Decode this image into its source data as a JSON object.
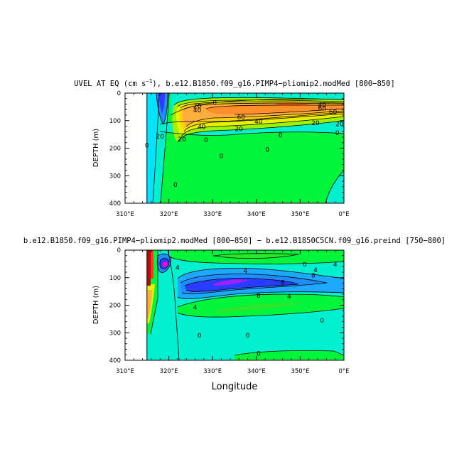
{
  "chart_data": [
    {
      "type": "heatmap",
      "title_main": "UVEL AT EQ (cm s",
      "title_sup": "−1",
      "title_rest": "), b.e12.B1850.f09_g16.PIMP4−pliomip2.modMed [800−850]",
      "ylabel": "DEPTH (m)",
      "xlabel": "",
      "x_ticks": [
        "310°E",
        "320°E",
        "330°E",
        "340°E",
        "350°E",
        "0°E"
      ],
      "y_ticks": [
        "0",
        "100",
        "200",
        "300",
        "400"
      ],
      "xlim": [
        310,
        360
      ],
      "ylim": [
        0,
        400
      ],
      "land_edge_lon": 315,
      "contour_labels": [
        {
          "text": "20",
          "lon": 326.5,
          "depth": 48
        },
        {
          "text": "40",
          "lon": 326.5,
          "depth": 62
        },
        {
          "text": "60",
          "lon": 336.5,
          "depth": 88
        },
        {
          "text": "40",
          "lon": 340.5,
          "depth": 103
        },
        {
          "text": "20",
          "lon": 336.0,
          "depth": 130
        },
        {
          "text": "40",
          "lon": 327.5,
          "depth": 122
        },
        {
          "text": "20",
          "lon": 323.0,
          "depth": 168
        },
        {
          "text": "40",
          "lon": 355.0,
          "depth": 44
        },
        {
          "text": "60",
          "lon": 355.0,
          "depth": 56
        },
        {
          "text": "60",
          "lon": 357.5,
          "depth": 68
        },
        {
          "text": "20",
          "lon": 353.5,
          "depth": 108
        },
        {
          "text": "20",
          "lon": 359.0,
          "depth": 112
        },
        {
          "text": "0",
          "lon": 345.5,
          "depth": 152
        },
        {
          "text": "0",
          "lon": 358.5,
          "depth": 145
        },
        {
          "text": "0",
          "lon": 328.5,
          "depth": 170
        },
        {
          "text": "0",
          "lon": 342.5,
          "depth": 205
        },
        {
          "text": "0",
          "lon": 332.0,
          "depth": 228
        },
        {
          "text": "0",
          "lon": 330.5,
          "depth": 35
        },
        {
          "text": "0",
          "lon": 315.0,
          "depth": 190
        },
        {
          "text": "20",
          "lon": 318.0,
          "depth": 158
        },
        {
          "text": "0",
          "lon": 321.5,
          "depth": 333
        }
      ]
    },
    {
      "type": "heatmap",
      "title": "b.e12.B1850.f09_g16.PIMP4−pliomip2.modMed [800−850] − b.e12.B1850C5CN.f09_g16.preind [750−800]",
      "ylabel": "DEPTH (m)",
      "xlabel": "Longitude",
      "x_ticks": [
        "310°E",
        "320°E",
        "330°E",
        "340°E",
        "350°E",
        "0°E"
      ],
      "y_ticks": [
        "0",
        "100",
        "200",
        "300",
        "400"
      ],
      "xlim": [
        310,
        360
      ],
      "ylim": [
        0,
        400
      ],
      "land_edge_lon": 315,
      "contour_labels": [
        {
          "text": "4",
          "lon": 337.5,
          "depth": 75
        },
        {
          "text": "4",
          "lon": 353.5,
          "depth": 72
        },
        {
          "text": "8",
          "lon": 353.0,
          "depth": 92
        },
        {
          "text": "4",
          "lon": 326.0,
          "depth": 208
        },
        {
          "text": "4",
          "lon": 347.5,
          "depth": 168
        },
        {
          "text": "8",
          "lon": 346.0,
          "depth": 118
        },
        {
          "text": "8",
          "lon": 340.5,
          "depth": 165
        },
        {
          "text": "0",
          "lon": 327.0,
          "depth": 310
        },
        {
          "text": "0",
          "lon": 338.0,
          "depth": 310
        },
        {
          "text": "0",
          "lon": 340.5,
          "depth": 375
        },
        {
          "text": "0",
          "lon": 355.0,
          "depth": 255
        },
        {
          "text": "0",
          "lon": 351.0,
          "depth": 52
        },
        {
          "text": "4",
          "lon": 358.0,
          "depth": 52
        },
        {
          "text": "4",
          "lon": 322.0,
          "depth": 63
        }
      ]
    }
  ]
}
